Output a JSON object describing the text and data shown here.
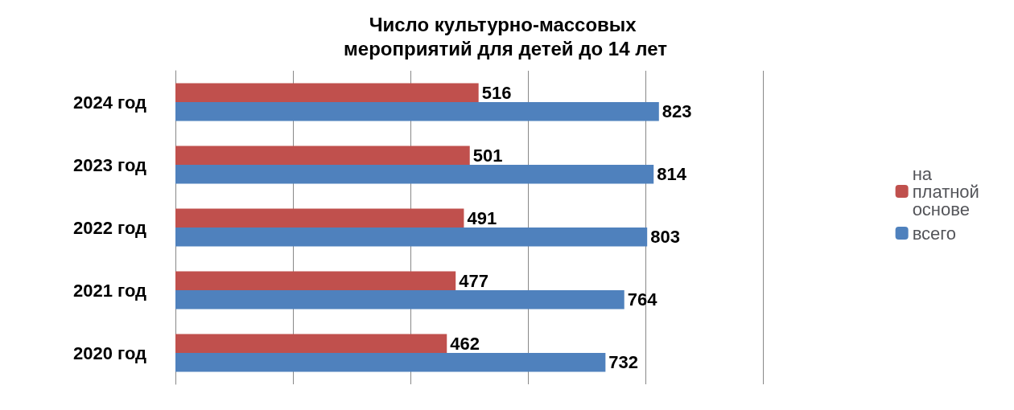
{
  "chart_data": {
    "type": "bar",
    "orientation": "horizontal",
    "title": "Число культурно-массовых мероприятий для детей до 14 лет",
    "categories": [
      "2024 год",
      "2023 год",
      "2022 год",
      "2021 год",
      "2020 год"
    ],
    "series": [
      {
        "name": "на платной основе",
        "color": "#c0504d",
        "values": [
          516,
          501,
          491,
          477,
          462
        ]
      },
      {
        "name": "всего",
        "color": "#4f81bd",
        "values": [
          823,
          814,
          803,
          764,
          732
        ]
      }
    ],
    "data_labels": true,
    "grid": "x",
    "legend": "right"
  }
}
